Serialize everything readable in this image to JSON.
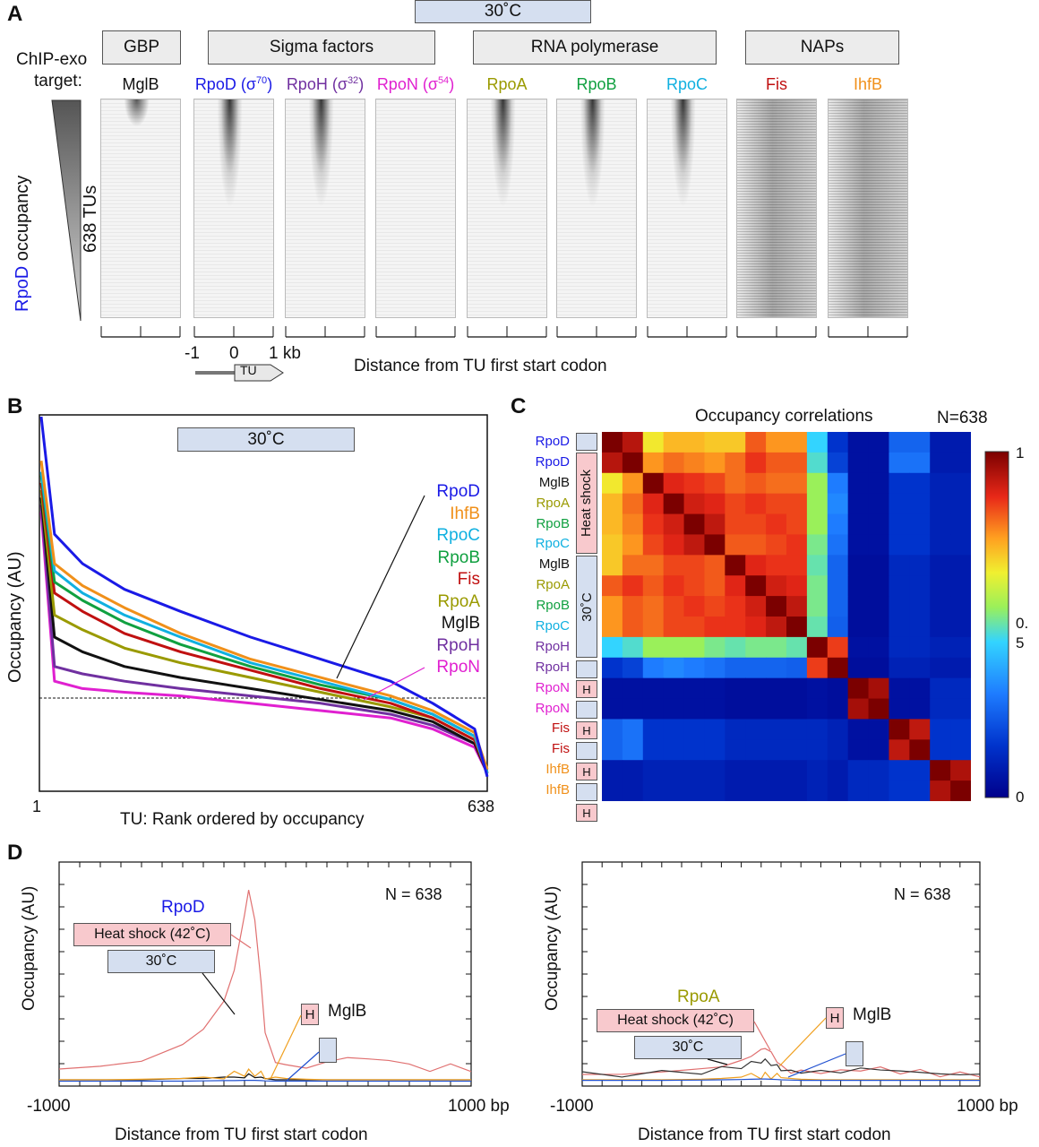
{
  "panels": {
    "a": "A",
    "b": "B",
    "c": "C",
    "d": "D"
  },
  "panel_a": {
    "temp_label": "30˚C",
    "groups": [
      "GBP",
      "Sigma factors",
      "RNA polymerase",
      "NAPs"
    ],
    "target_label_1": "ChIP-exo",
    "target_label_2": "target:",
    "targets": [
      {
        "name": "MglB",
        "color": "#111111"
      },
      {
        "name": "RpoD (σ",
        "sup": "70",
        "close": ")",
        "color": "#1a1ae6"
      },
      {
        "name": "RpoH (σ",
        "sup": "32",
        "close": ")",
        "color": "#7030a0"
      },
      {
        "name": "RpoN (σ",
        "sup": "54",
        "close": ")",
        "color": "#e020d0"
      },
      {
        "name": "RpoA",
        "color": "#9a9a00"
      },
      {
        "name": "RpoB",
        "color": "#10a040"
      },
      {
        "name": "RpoC",
        "color": "#10b0e0"
      },
      {
        "name": "Fis",
        "color": "#c01010"
      },
      {
        "name": "IhfB",
        "color": "#f0901a"
      }
    ],
    "side_label_a": "RpoD",
    "side_label_b": " occupancy",
    "tus_label": "638 TUs",
    "tick_labels": [
      "-1",
      "0",
      "1 kb"
    ],
    "tu_arrow": "TU",
    "xlabel": "Distance from TU first start codon"
  },
  "panel_b": {
    "temp_label": "30˚C",
    "ylabel": "Occupancy (AU)",
    "xlabel": "TU:  Rank ordered by occupancy",
    "x_start": "1",
    "x_end": "638",
    "legend": [
      {
        "name": "RpoD",
        "color": "#1a1ae6"
      },
      {
        "name": "IhfB",
        "color": "#f0901a"
      },
      {
        "name": "RpoC",
        "color": "#10b0e0"
      },
      {
        "name": "RpoB",
        "color": "#10a040"
      },
      {
        "name": "Fis",
        "color": "#c01010"
      },
      {
        "name": "RpoA",
        "color": "#9a9a00"
      },
      {
        "name": "MglB",
        "color": "#111111"
      },
      {
        "name": "RpoH",
        "color": "#7030a0"
      },
      {
        "name": "RpoN",
        "color": "#e020d0"
      }
    ]
  },
  "panel_c": {
    "title": "Occupancy correlations",
    "n_label": "N=638",
    "rows": [
      {
        "name": "RpoD",
        "color": "#1a1ae6"
      },
      {
        "name": "RpoD",
        "color": "#1a1ae6"
      },
      {
        "name": "MglB",
        "color": "#111111"
      },
      {
        "name": "RpoA",
        "color": "#9a9a00"
      },
      {
        "name": "RpoB",
        "color": "#10a040"
      },
      {
        "name": "RpoC",
        "color": "#10b0e0"
      },
      {
        "name": "MglB",
        "color": "#111111"
      },
      {
        "name": "RpoA",
        "color": "#9a9a00"
      },
      {
        "name": "RpoB",
        "color": "#10a040"
      },
      {
        "name": "RpoC",
        "color": "#10b0e0"
      },
      {
        "name": "RpoH",
        "color": "#7030a0"
      },
      {
        "name": "RpoH",
        "color": "#7030a0"
      },
      {
        "name": "RpoN",
        "color": "#e020d0"
      },
      {
        "name": "RpoN",
        "color": "#e020d0"
      },
      {
        "name": "Fis",
        "color": "#c01010"
      },
      {
        "name": "Fis",
        "color": "#c01010"
      },
      {
        "name": "IhfB",
        "color": "#f0901a"
      },
      {
        "name": "IhfB",
        "color": "#f0901a"
      }
    ],
    "heat_shock_label": "Heat shock",
    "c30_label": "30˚C",
    "h_label": "H",
    "colorbar_top": "1",
    "colorbar_mid_a": "0.",
    "colorbar_mid_b": "5",
    "colorbar_bottom": "0"
  },
  "chart_data": [
    {
      "type": "line",
      "title": "",
      "xlabel": "TU:  Rank ordered by occupancy",
      "ylabel": "Occupancy (AU)",
      "x": [
        1,
        20,
        60,
        120,
        200,
        300,
        400,
        500,
        560,
        620,
        638
      ],
      "series": [
        {
          "name": "RpoD",
          "values": [
            100,
            68,
            60,
            53,
            47,
            40,
            34,
            28,
            22,
            15,
            2
          ]
        },
        {
          "name": "IhfB",
          "values": [
            88,
            60,
            54,
            48,
            41,
            34,
            29,
            24,
            20,
            14,
            4
          ]
        },
        {
          "name": "RpoC",
          "values": [
            85,
            58,
            52,
            46,
            40,
            33,
            28,
            23,
            19,
            13,
            3
          ]
        },
        {
          "name": "RpoB",
          "values": [
            84,
            55,
            50,
            44,
            38,
            32,
            27,
            23,
            19,
            13,
            3
          ]
        },
        {
          "name": "Fis",
          "values": [
            82,
            52,
            47,
            41,
            36,
            31,
            26,
            22,
            18,
            12,
            3
          ]
        },
        {
          "name": "RpoA",
          "values": [
            80,
            46,
            42,
            37,
            33,
            29,
            25,
            21,
            18,
            12,
            3
          ]
        },
        {
          "name": "MglB",
          "values": [
            78,
            40,
            36,
            32,
            29,
            26,
            23,
            20,
            17,
            11,
            3
          ]
        },
        {
          "name": "RpoH",
          "values": [
            76,
            32,
            30,
            28,
            26,
            24,
            22,
            19,
            16,
            11,
            3
          ]
        },
        {
          "name": "RpoN",
          "values": [
            74,
            28,
            26,
            25,
            24,
            22,
            20,
            18,
            15,
            10,
            3
          ]
        }
      ]
    },
    {
      "type": "heatmap",
      "title": "Occupancy correlations",
      "labels": [
        "RpoD",
        "RpoD",
        "MglB",
        "RpoA",
        "RpoB",
        "RpoC",
        "MglB",
        "RpoA",
        "RpoB",
        "RpoC",
        "RpoH",
        "RpoH",
        "RpoN",
        "RpoN",
        "Fis",
        "Fis",
        "IhfB",
        "IhfB"
      ],
      "matrix": [
        [
          1.0,
          0.93,
          0.66,
          0.72,
          0.72,
          0.7,
          0.7,
          0.82,
          0.76,
          0.76,
          0.45,
          0.15,
          0.05,
          0.05,
          0.25,
          0.25,
          0.08,
          0.08
        ],
        [
          0.93,
          1.0,
          0.76,
          0.8,
          0.78,
          0.76,
          0.8,
          0.86,
          0.82,
          0.82,
          0.48,
          0.18,
          0.05,
          0.05,
          0.28,
          0.28,
          0.08,
          0.08
        ],
        [
          0.66,
          0.76,
          1.0,
          0.88,
          0.86,
          0.84,
          0.8,
          0.82,
          0.8,
          0.8,
          0.55,
          0.3,
          0.05,
          0.05,
          0.15,
          0.15,
          0.1,
          0.1
        ],
        [
          0.72,
          0.8,
          0.88,
          1.0,
          0.9,
          0.88,
          0.84,
          0.86,
          0.84,
          0.84,
          0.55,
          0.32,
          0.05,
          0.05,
          0.15,
          0.15,
          0.1,
          0.1
        ],
        [
          0.72,
          0.78,
          0.86,
          0.9,
          1.0,
          0.92,
          0.84,
          0.84,
          0.86,
          0.84,
          0.55,
          0.3,
          0.05,
          0.05,
          0.15,
          0.15,
          0.1,
          0.1
        ],
        [
          0.7,
          0.76,
          0.84,
          0.88,
          0.92,
          1.0,
          0.82,
          0.82,
          0.84,
          0.86,
          0.52,
          0.28,
          0.05,
          0.05,
          0.15,
          0.15,
          0.1,
          0.1
        ],
        [
          0.7,
          0.8,
          0.8,
          0.84,
          0.84,
          0.82,
          1.0,
          0.88,
          0.86,
          0.86,
          0.5,
          0.25,
          0.04,
          0.04,
          0.12,
          0.12,
          0.08,
          0.08
        ],
        [
          0.82,
          0.86,
          0.82,
          0.86,
          0.84,
          0.82,
          0.88,
          1.0,
          0.9,
          0.88,
          0.52,
          0.25,
          0.04,
          0.04,
          0.12,
          0.12,
          0.08,
          0.08
        ],
        [
          0.76,
          0.82,
          0.8,
          0.84,
          0.86,
          0.84,
          0.86,
          0.9,
          1.0,
          0.92,
          0.52,
          0.25,
          0.04,
          0.04,
          0.12,
          0.12,
          0.08,
          0.08
        ],
        [
          0.76,
          0.82,
          0.8,
          0.84,
          0.84,
          0.86,
          0.86,
          0.88,
          0.92,
          1.0,
          0.5,
          0.24,
          0.04,
          0.04,
          0.12,
          0.12,
          0.08,
          0.08
        ],
        [
          0.45,
          0.48,
          0.55,
          0.55,
          0.55,
          0.52,
          0.5,
          0.52,
          0.52,
          0.5,
          1.0,
          0.85,
          0.05,
          0.05,
          0.12,
          0.12,
          0.1,
          0.1
        ],
        [
          0.15,
          0.18,
          0.3,
          0.32,
          0.3,
          0.28,
          0.25,
          0.25,
          0.25,
          0.24,
          0.85,
          1.0,
          0.04,
          0.04,
          0.1,
          0.1,
          0.08,
          0.08
        ],
        [
          0.05,
          0.05,
          0.05,
          0.05,
          0.05,
          0.05,
          0.04,
          0.04,
          0.04,
          0.04,
          0.05,
          0.04,
          1.0,
          0.95,
          0.05,
          0.05,
          0.12,
          0.12
        ],
        [
          0.05,
          0.05,
          0.05,
          0.05,
          0.05,
          0.05,
          0.04,
          0.04,
          0.04,
          0.04,
          0.05,
          0.04,
          0.95,
          1.0,
          0.05,
          0.05,
          0.12,
          0.12
        ],
        [
          0.25,
          0.28,
          0.15,
          0.15,
          0.15,
          0.15,
          0.12,
          0.12,
          0.12,
          0.12,
          0.12,
          0.1,
          0.05,
          0.05,
          1.0,
          0.92,
          0.15,
          0.15
        ],
        [
          0.25,
          0.28,
          0.15,
          0.15,
          0.15,
          0.15,
          0.12,
          0.12,
          0.12,
          0.12,
          0.12,
          0.1,
          0.05,
          0.05,
          0.92,
          1.0,
          0.15,
          0.15
        ],
        [
          0.08,
          0.08,
          0.1,
          0.1,
          0.1,
          0.1,
          0.08,
          0.08,
          0.08,
          0.08,
          0.1,
          0.08,
          0.12,
          0.12,
          0.15,
          0.15,
          1.0,
          0.94
        ],
        [
          0.08,
          0.08,
          0.1,
          0.1,
          0.1,
          0.1,
          0.08,
          0.08,
          0.08,
          0.08,
          0.1,
          0.08,
          0.12,
          0.12,
          0.15,
          0.15,
          0.94,
          1.0
        ]
      ],
      "zlim": [
        0,
        1
      ]
    },
    {
      "type": "line",
      "title": "RpoD",
      "xlabel": "Distance from TU first start codon",
      "ylabel": "Occupancy (AU)",
      "xlim": [
        -1000,
        1000
      ],
      "x_unit": "bp",
      "n_label": "N = 638",
      "x": [
        -1000,
        -800,
        -600,
        -400,
        -300,
        -200,
        -150,
        -100,
        -80,
        -50,
        -20,
        0,
        50,
        100,
        200,
        300,
        400,
        500,
        600,
        700,
        800,
        900,
        1000
      ],
      "series": [
        {
          "name": "Heat shock (42˚C)",
          "color": "#e07070",
          "values": [
            5,
            6,
            8,
            14,
            20,
            30,
            42,
            62,
            72,
            60,
            38,
            18,
            8,
            6,
            6,
            7,
            10,
            8,
            9,
            6,
            5,
            6,
            5
          ]
        },
        {
          "name": "30˚C",
          "color": "#111111",
          "values": [
            1,
            1,
            1,
            1.5,
            1.5,
            2,
            2,
            2.5,
            2.5,
            2.5,
            2,
            1.5,
            1,
            1,
            1,
            1,
            1,
            1,
            1,
            1,
            1,
            1,
            1
          ]
        },
        {
          "name": "H MglB",
          "color": "#f0a020",
          "values": [
            1,
            1,
            1.2,
            1.5,
            2,
            2.5,
            3,
            3.5,
            3.8,
            3.5,
            3,
            2.5,
            2,
            1.5,
            1.2,
            1,
            1,
            1,
            1,
            1,
            1,
            1,
            1
          ]
        },
        {
          "name": "MglB 30˚C",
          "color": "#2050d0",
          "values": [
            0.5,
            0.5,
            0.5,
            0.5,
            0.6,
            0.7,
            0.7,
            0.8,
            0.8,
            0.8,
            0.7,
            0.6,
            0.5,
            0.5,
            0.5,
            0.5,
            0.5,
            0.5,
            0.5,
            0.5,
            0.5,
            0.5,
            0.5
          ]
        }
      ],
      "annotations": [
        "Heat shock (42˚C)",
        "30˚C",
        "H",
        "MglB"
      ]
    },
    {
      "type": "line",
      "title": "RpoA",
      "xlabel": "Distance from TU first start codon",
      "ylabel": "Occupancy (AU)",
      "xlim": [
        -1000,
        1000
      ],
      "x_unit": "bp",
      "n_label": "N = 638",
      "x": [
        -1000,
        -800,
        -600,
        -400,
        -300,
        -200,
        -150,
        -100,
        -80,
        -50,
        -20,
        0,
        50,
        100,
        200,
        300,
        400,
        500,
        600,
        700,
        800,
        900,
        1000
      ],
      "series": [
        {
          "name": "Heat shock (42˚C)",
          "color": "#e07070",
          "values": [
            3,
            3,
            4,
            5,
            6,
            8,
            10,
            12,
            13,
            11,
            8,
            6,
            4,
            4,
            4,
            4,
            5,
            5,
            4,
            4,
            3,
            3,
            3
          ]
        },
        {
          "name": "30˚C",
          "color": "#333333",
          "values": [
            3,
            3,
            3.5,
            4,
            5,
            6,
            7,
            8,
            8,
            7,
            6,
            5,
            4,
            4,
            4,
            4,
            5,
            5,
            4,
            4,
            3,
            3,
            3
          ]
        },
        {
          "name": "H MglB",
          "color": "#f0a020",
          "values": [
            1,
            1,
            1,
            1.2,
            1.5,
            2,
            2.2,
            2.5,
            2.6,
            2.5,
            2.2,
            1.8,
            1.5,
            1.2,
            1,
            1,
            1,
            1,
            1,
            1,
            1,
            1,
            1
          ]
        },
        {
          "name": "MglB 30˚C",
          "color": "#2050d0",
          "values": [
            0.8,
            0.8,
            0.8,
            0.9,
            1,
            1.1,
            1.2,
            1.3,
            1.3,
            1.2,
            1.1,
            1,
            0.9,
            0.8,
            0.8,
            0.8,
            0.8,
            0.8,
            0.8,
            0.8,
            0.8,
            0.8,
            0.8
          ]
        }
      ],
      "annotations": [
        "Heat shock (42˚C)",
        "30˚C",
        "H",
        "MglB"
      ]
    }
  ]
}
